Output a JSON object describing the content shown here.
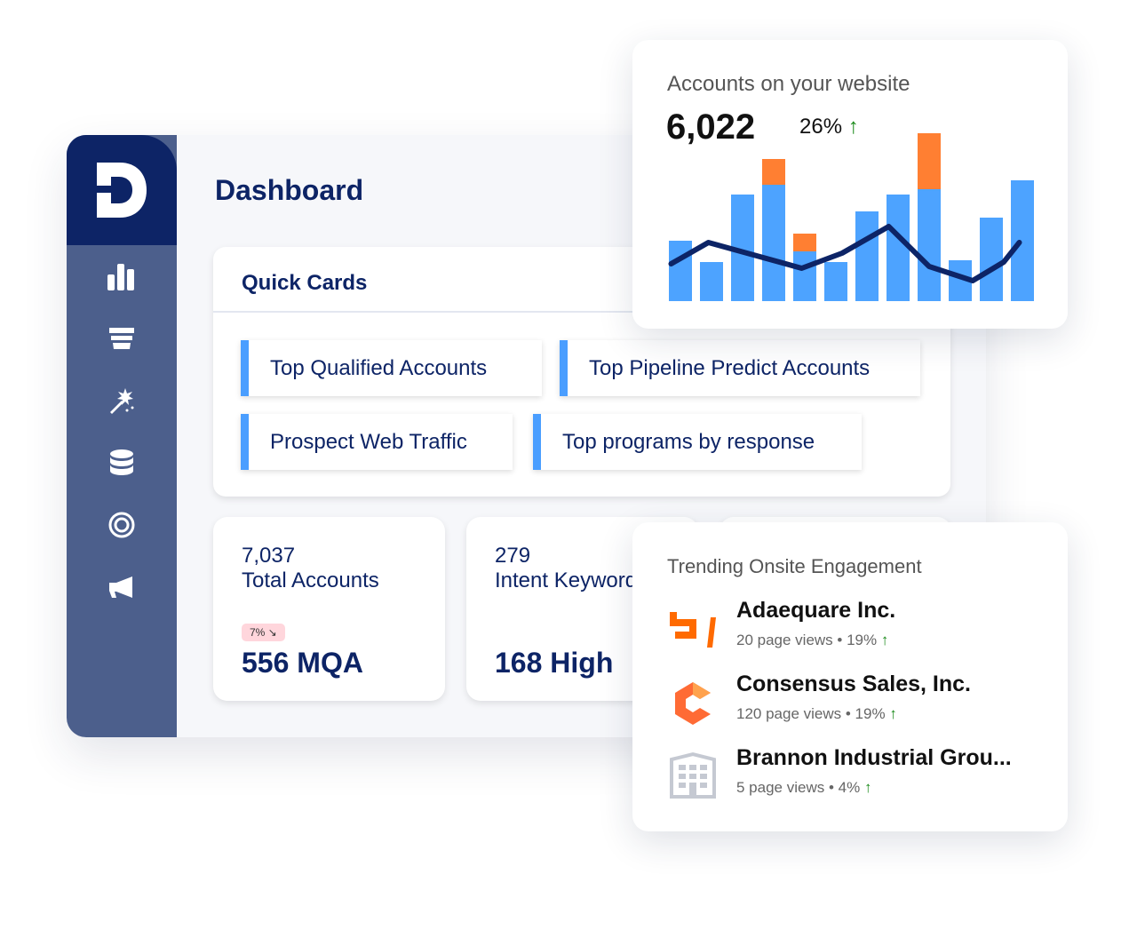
{
  "sidebar": {
    "logo_letter": "D",
    "items": [
      {
        "icon": "bar-chart-icon"
      },
      {
        "icon": "funnel-icon"
      },
      {
        "icon": "magic-wand-icon"
      },
      {
        "icon": "database-icon"
      },
      {
        "icon": "target-icon"
      },
      {
        "icon": "megaphone-icon"
      }
    ]
  },
  "dashboard": {
    "title": "Dashboard"
  },
  "quick_cards": {
    "title": "Quick Cards",
    "items": [
      "Top Qualified Accounts",
      "Top Pipeline Predict Accounts",
      "Prospect Web Traffic",
      "Top programs by response"
    ]
  },
  "stats": [
    {
      "number": "7,037",
      "label": "Total Accounts",
      "badge": "7% ↘",
      "big": "556 MQA"
    },
    {
      "number": "279",
      "label": "Intent Keywords",
      "big": "168 High"
    }
  ],
  "accounts_card": {
    "title": "Accounts on your website",
    "value": "6,022",
    "change": "26%",
    "change_arrow": "↑"
  },
  "chart_data": {
    "type": "bar",
    "stacked": true,
    "colors": {
      "primary": "#4da3ff",
      "secondary": "#ff7f32",
      "line": "#0d2466"
    },
    "series": [
      {
        "values": [
          68,
          44,
          120,
          131,
          56,
          44,
          101,
          120,
          126,
          46,
          94,
          136
        ]
      },
      {
        "values": [
          0,
          0,
          0,
          29,
          20,
          0,
          0,
          0,
          63,
          0,
          0,
          0
        ]
      }
    ],
    "line": [
      [
        -0.3,
        42
      ],
      [
        0.9,
        66
      ],
      [
        3.9,
        37
      ],
      [
        5.2,
        54
      ],
      [
        6.7,
        84
      ],
      [
        8.0,
        39
      ],
      [
        9.4,
        23
      ],
      [
        10.4,
        44
      ],
      [
        10.9,
        66
      ]
    ]
  },
  "trending": {
    "title": "Trending Onsite Engagement",
    "items": [
      {
        "name": "Adaequare Inc.",
        "views": "20 page views",
        "pct": "19%",
        "arrow": "↑",
        "icon": "adaequare-logo-icon"
      },
      {
        "name": "Consensus Sales, Inc.",
        "views": "120 page views",
        "pct": "19%",
        "arrow": "↑",
        "icon": "consensus-logo-icon"
      },
      {
        "name": "Brannon Industrial Grou...",
        "views": "5 page views",
        "pct": "4%",
        "arrow": "↑",
        "icon": "building-icon"
      }
    ]
  }
}
